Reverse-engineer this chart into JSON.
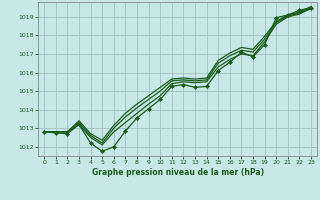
{
  "title": "Graphe pression niveau de la mer (hPa)",
  "bg_color": "#c8e8e8",
  "grid_color": "#a0c0c0",
  "line_color": "#1a5c1a",
  "xlim": [
    -0.5,
    23.5
  ],
  "ylim": [
    1011.5,
    1019.8
  ],
  "yticks": [
    1012,
    1013,
    1014,
    1015,
    1016,
    1017,
    1018,
    1019
  ],
  "xticks": [
    0,
    1,
    2,
    3,
    4,
    5,
    6,
    7,
    8,
    9,
    10,
    11,
    12,
    13,
    14,
    15,
    16,
    17,
    18,
    19,
    20,
    21,
    22,
    23
  ],
  "series": {
    "main_marked": [
      1012.8,
      1012.75,
      1012.7,
      1013.2,
      1012.2,
      1011.75,
      1012.0,
      1012.85,
      1013.55,
      1014.05,
      1014.55,
      1015.25,
      1015.35,
      1015.2,
      1015.25,
      1016.1,
      1016.55,
      1017.1,
      1016.85,
      1017.5,
      1018.95,
      1019.1,
      1019.35,
      1019.5
    ],
    "smooth1": [
      1012.8,
      1012.8,
      1012.8,
      1013.2,
      1012.5,
      1012.1,
      1012.8,
      1013.3,
      1013.8,
      1014.3,
      1014.75,
      1015.4,
      1015.5,
      1015.45,
      1015.5,
      1016.3,
      1016.7,
      1017.0,
      1016.9,
      1017.65,
      1018.6,
      1019.0,
      1019.15,
      1019.45
    ],
    "smooth2": [
      1012.8,
      1012.8,
      1012.8,
      1013.3,
      1012.6,
      1012.2,
      1013.0,
      1013.6,
      1014.1,
      1014.55,
      1015.0,
      1015.55,
      1015.6,
      1015.55,
      1015.6,
      1016.5,
      1016.9,
      1017.2,
      1017.1,
      1017.8,
      1018.7,
      1019.05,
      1019.2,
      1019.5
    ],
    "smooth3": [
      1012.8,
      1012.8,
      1012.8,
      1013.4,
      1012.7,
      1012.35,
      1013.15,
      1013.8,
      1014.3,
      1014.75,
      1015.2,
      1015.65,
      1015.7,
      1015.65,
      1015.7,
      1016.65,
      1017.05,
      1017.35,
      1017.25,
      1017.95,
      1018.75,
      1019.1,
      1019.25,
      1019.55
    ]
  }
}
